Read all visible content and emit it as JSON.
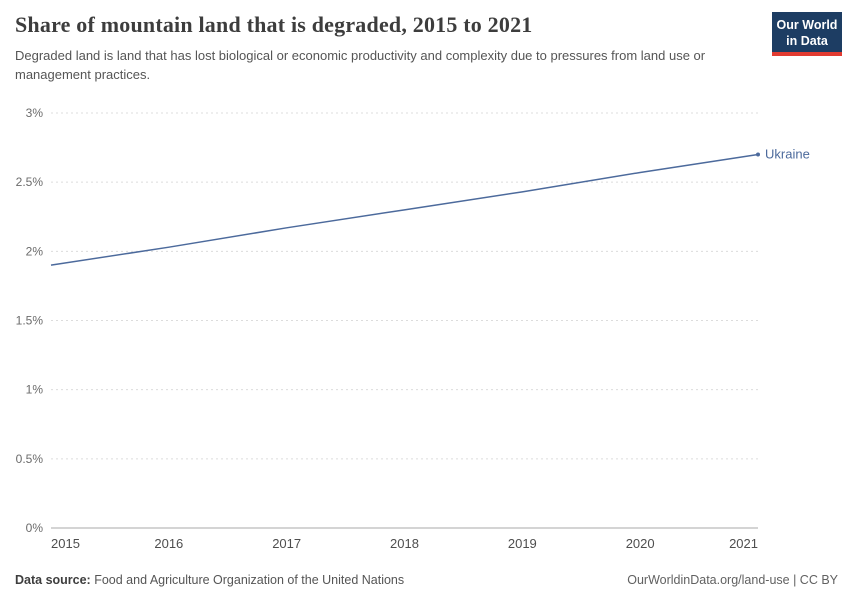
{
  "header": {
    "title": "Share of mountain land that is degraded, 2015 to 2021",
    "subtitle": "Degraded land is land that has lost biological or economic productivity and complexity due to pressures from land use or management practices.",
    "logo": {
      "line1": "Our World",
      "line2": "in Data"
    }
  },
  "chart_data": {
    "type": "line",
    "title": "Share of mountain land that is degraded, 2015 to 2021",
    "x": [
      2015,
      2016,
      2017,
      2018,
      2019,
      2020,
      2021
    ],
    "series": [
      {
        "name": "Ukraine",
        "values": [
          1.9,
          2.03,
          2.17,
          2.3,
          2.43,
          2.57,
          2.7
        ],
        "color": "#4C6A9C"
      }
    ],
    "xlabel": "",
    "ylabel": "",
    "ylim": [
      0,
      3
    ],
    "yticks": [
      0,
      0.5,
      1,
      1.5,
      2,
      2.5,
      3
    ],
    "ytick_suffix": "%",
    "grid": "horizontal-dashed",
    "legend_position": "end-of-line"
  },
  "footer": {
    "source_label": "Data source:",
    "source_text": "Food and Agriculture Organization of the United Nations",
    "right_text": "OurWorldinData.org/land-use | CC BY"
  },
  "colors": {
    "line": "#4C6A9C",
    "logo_bg": "#1d3d63",
    "logo_accent": "#e23b31",
    "grid": "#dcdcdc",
    "axis": "#a8a8a8"
  }
}
